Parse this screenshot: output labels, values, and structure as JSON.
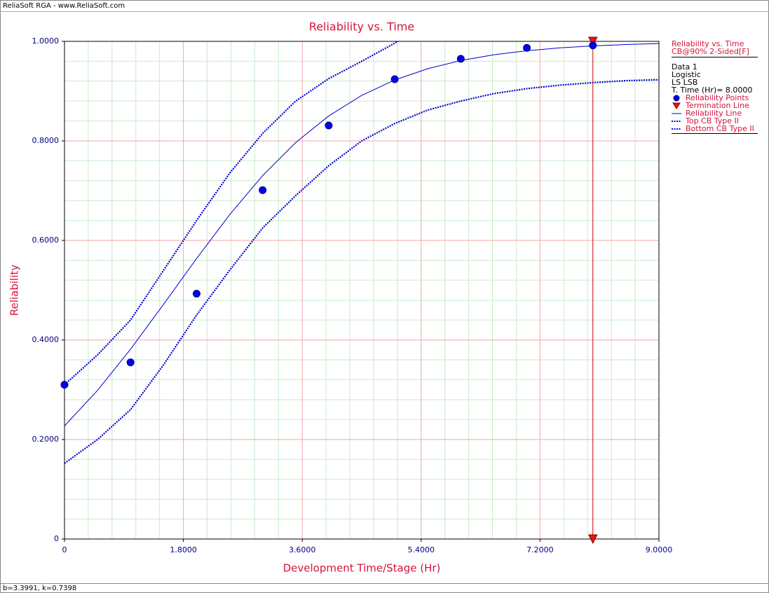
{
  "chart_data": {
    "type": "line",
    "header": "ReliaSoft RGA - www.ReliaSoft.com",
    "footer": "b=3.3991, k=0.7398",
    "title": "Reliability vs. Time",
    "x_label": "Development Time/Stage (Hr)",
    "y_label": "Reliability",
    "xlim": [
      0,
      9
    ],
    "ylim": [
      0,
      1
    ],
    "xticks": [
      {
        "value": 0,
        "label": "0"
      },
      {
        "value": 1.8,
        "label": "1.8000"
      },
      {
        "value": 3.6,
        "label": "3.6000"
      },
      {
        "value": 5.4,
        "label": "5.4000"
      },
      {
        "value": 7.2,
        "label": "7.2000"
      },
      {
        "value": 9,
        "label": "9.0000"
      }
    ],
    "yticks": [
      {
        "value": 0,
        "label": "0"
      },
      {
        "value": 0.2,
        "label": "0.2000"
      },
      {
        "value": 0.4,
        "label": "0.4000"
      },
      {
        "value": 0.6,
        "label": "0.6000"
      },
      {
        "value": 0.8,
        "label": "0.8000"
      },
      {
        "value": 1,
        "label": "1.0000"
      }
    ],
    "grid": true,
    "minor_divisions": 5,
    "legend_title": "Reliability vs. Time",
    "legend_subtitle": "CB@90% 2-Sided[F]",
    "legend_info": [
      "Data 1",
      "Logistic",
      "LS LSB",
      "T. Time (Hr)= 8.0000"
    ],
    "series": [
      {
        "name": "Reliability Points",
        "style": "points",
        "color": "#0000ee",
        "x": [
          0,
          1,
          2,
          3,
          4,
          5,
          6,
          7,
          8
        ],
        "values": [
          0.31,
          0.355,
          0.493,
          0.701,
          0.831,
          0.924,
          0.965,
          0.987,
          0.992
        ]
      },
      {
        "name": "Termination Line",
        "style": "vline",
        "color": "#cc0000",
        "x": [
          8
        ]
      },
      {
        "name": "Reliability Line",
        "style": "solid",
        "color": "#0000cc",
        "x": [
          0,
          0.5,
          1,
          1.5,
          2,
          2.5,
          3,
          3.5,
          4,
          4.5,
          5,
          5.5,
          6,
          6.5,
          7,
          7.5,
          8,
          8.5,
          9
        ],
        "values": [
          0.2273,
          0.2987,
          0.3814,
          0.4716,
          0.5637,
          0.6516,
          0.7303,
          0.7967,
          0.8501,
          0.8914,
          0.9224,
          0.9451,
          0.9614,
          0.973,
          0.9812,
          0.9869,
          0.9909,
          0.9937,
          0.9956
        ]
      },
      {
        "name": "Top CB Type II",
        "style": "dotted",
        "color": "#0000cc",
        "x": [
          0,
          0.5,
          1,
          1.5,
          2,
          2.5,
          3,
          3.5,
          4,
          4.5,
          5.05
        ],
        "values": [
          0.31,
          0.37,
          0.44,
          0.54,
          0.64,
          0.735,
          0.815,
          0.88,
          0.925,
          0.96,
          1
        ]
      },
      {
        "name": "Bottom CB Type II",
        "style": "dotted",
        "color": "#0000cc",
        "x": [
          0,
          0.5,
          1,
          1.5,
          2,
          2.5,
          3,
          3.5,
          4,
          4.5,
          5,
          5.5,
          6,
          6.5,
          7,
          7.5,
          8,
          8.5,
          9
        ],
        "values": [
          0.152,
          0.2,
          0.26,
          0.35,
          0.45,
          0.54,
          0.625,
          0.69,
          0.75,
          0.8,
          0.835,
          0.862,
          0.88,
          0.895,
          0.905,
          0.912,
          0.917,
          0.921,
          0.923
        ]
      }
    ]
  }
}
